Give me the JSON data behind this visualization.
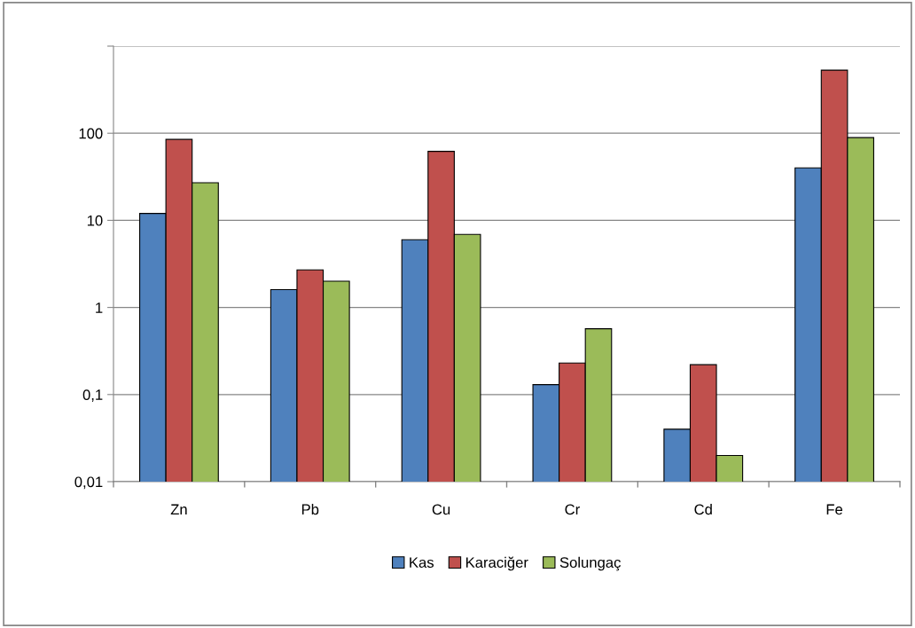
{
  "chart_data": {
    "type": "bar",
    "categories": [
      "Zn",
      "Pb",
      "Cu",
      "Cr",
      "Cd",
      "Fe"
    ],
    "series": [
      {
        "name": "Kas",
        "color": "#4f81bd",
        "values": [
          12,
          1.6,
          6,
          0.13,
          0.04,
          40
        ]
      },
      {
        "name": "Karaciğer",
        "color": "#c0504d",
        "values": [
          85,
          2.7,
          62,
          0.23,
          0.22,
          530
        ]
      },
      {
        "name": "Solungaç",
        "color": "#9bbb59",
        "values": [
          27,
          2,
          6.9,
          0.57,
          0.02,
          89
        ]
      }
    ],
    "log": "y",
    "ylim": [
      0.01,
      1000
    ],
    "yticks": [
      {
        "value": 0.01,
        "label": "0,01"
      },
      {
        "value": 0.1,
        "label": "0,1"
      },
      {
        "value": 1,
        "label": "1"
      },
      {
        "value": 10,
        "label": "10"
      },
      {
        "value": 100,
        "label": "100"
      },
      {
        "value": 1000,
        "label": null
      }
    ],
    "grid": "y",
    "legend": "bottom"
  }
}
